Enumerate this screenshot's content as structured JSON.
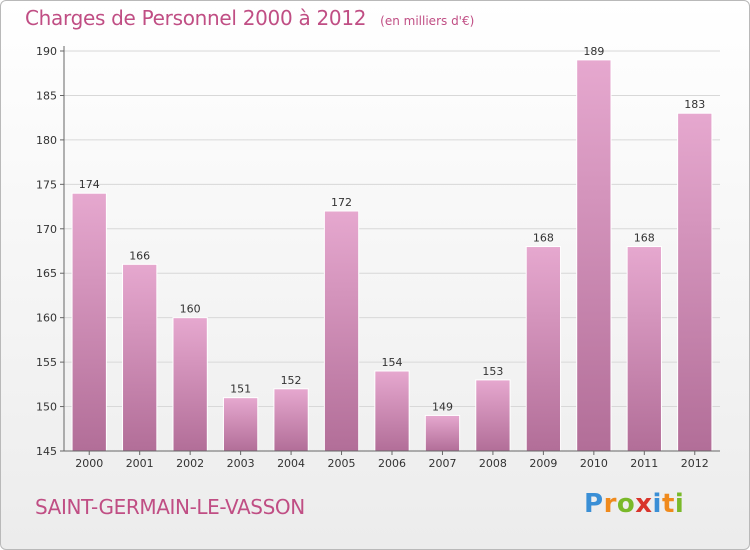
{
  "chart_data": {
    "type": "bar",
    "title": "Charges de Personnel 2000 à 2012",
    "subtitle": "(en milliers d'€)",
    "categories": [
      "2000",
      "2001",
      "2002",
      "2003",
      "2004",
      "2005",
      "2006",
      "2007",
      "2008",
      "2009",
      "2010",
      "2011",
      "2012"
    ],
    "values": [
      174,
      166,
      160,
      151,
      152,
      172,
      154,
      149,
      153,
      168,
      189,
      168,
      183
    ],
    "ylim": [
      145,
      190
    ],
    "yticks": [
      145,
      150,
      155,
      160,
      165,
      170,
      175,
      180,
      185,
      190
    ],
    "grid": true,
    "bar_color": "#d98fbb"
  },
  "footer": {
    "town": "SAINT-GERMAIN-LE-VASSON",
    "logo": [
      "P",
      "r",
      "o",
      "x",
      "i",
      "t",
      "i"
    ],
    "logo_colors": [
      "#3a8fd6",
      "#f08a1c",
      "#7ab929",
      "#d9342b",
      "#3a8fd6",
      "#f08a1c",
      "#7ab929"
    ]
  }
}
